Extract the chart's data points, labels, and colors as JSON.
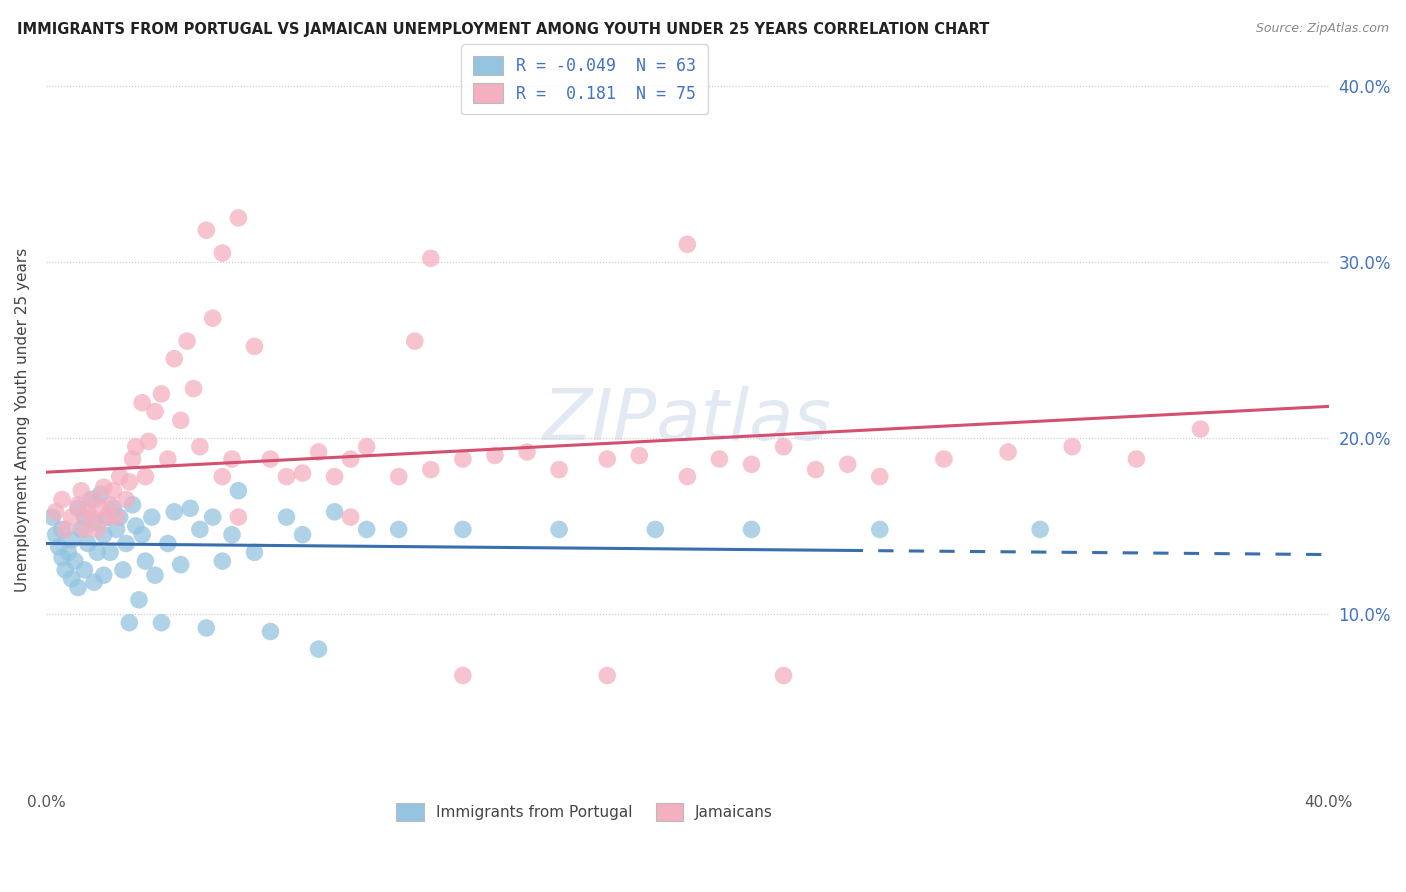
{
  "title": "IMMIGRANTS FROM PORTUGAL VS JAMAICAN UNEMPLOYMENT AMONG YOUTH UNDER 25 YEARS CORRELATION CHART",
  "source": "Source: ZipAtlas.com",
  "ylabel": "Unemployment Among Youth under 25 years",
  "xlim": [
    0.0,
    0.4
  ],
  "ylim": [
    0.0,
    0.42
  ],
  "ytick_labels": [
    "10.0%",
    "20.0%",
    "30.0%",
    "40.0%"
  ],
  "ytick_vals": [
    0.1,
    0.2,
    0.3,
    0.4
  ],
  "legend_labels": [
    "Immigrants from Portugal",
    "Jamaicans"
  ],
  "blue_R": -0.049,
  "blue_N": 63,
  "pink_R": 0.181,
  "pink_N": 75,
  "blue_color": "#94c4e0",
  "pink_color": "#f4afc0",
  "blue_line_color": "#3a6fad",
  "pink_line_color": "#d45070",
  "watermark_text": "ZIPatlas",
  "blue_x": [
    0.002,
    0.003,
    0.004,
    0.005,
    0.005,
    0.006,
    0.007,
    0.008,
    0.008,
    0.009,
    0.01,
    0.01,
    0.011,
    0.012,
    0.012,
    0.013,
    0.014,
    0.015,
    0.015,
    0.016,
    0.017,
    0.018,
    0.018,
    0.019,
    0.02,
    0.021,
    0.022,
    0.023,
    0.024,
    0.025,
    0.026,
    0.027,
    0.028,
    0.029,
    0.03,
    0.031,
    0.033,
    0.034,
    0.036,
    0.038,
    0.04,
    0.042,
    0.045,
    0.048,
    0.05,
    0.052,
    0.055,
    0.058,
    0.06,
    0.065,
    0.07,
    0.075,
    0.08,
    0.085,
    0.09,
    0.1,
    0.11,
    0.13,
    0.16,
    0.19,
    0.22,
    0.26,
    0.31
  ],
  "blue_y": [
    0.155,
    0.145,
    0.138,
    0.132,
    0.148,
    0.125,
    0.135,
    0.12,
    0.142,
    0.13,
    0.16,
    0.115,
    0.148,
    0.125,
    0.155,
    0.14,
    0.165,
    0.118,
    0.152,
    0.135,
    0.168,
    0.145,
    0.122,
    0.155,
    0.135,
    0.16,
    0.148,
    0.155,
    0.125,
    0.14,
    0.095,
    0.162,
    0.15,
    0.108,
    0.145,
    0.13,
    0.155,
    0.122,
    0.095,
    0.14,
    0.158,
    0.128,
    0.16,
    0.148,
    0.092,
    0.155,
    0.13,
    0.145,
    0.17,
    0.135,
    0.09,
    0.155,
    0.145,
    0.08,
    0.158,
    0.148,
    0.148,
    0.148,
    0.148,
    0.148,
    0.148,
    0.148,
    0.148
  ],
  "pink_x": [
    0.003,
    0.005,
    0.006,
    0.008,
    0.01,
    0.011,
    0.012,
    0.013,
    0.014,
    0.015,
    0.016,
    0.017,
    0.018,
    0.019,
    0.02,
    0.021,
    0.022,
    0.023,
    0.025,
    0.026,
    0.027,
    0.028,
    0.03,
    0.031,
    0.032,
    0.034,
    0.036,
    0.038,
    0.04,
    0.042,
    0.044,
    0.046,
    0.048,
    0.05,
    0.052,
    0.055,
    0.058,
    0.06,
    0.065,
    0.07,
    0.075,
    0.08,
    0.085,
    0.09,
    0.095,
    0.1,
    0.11,
    0.115,
    0.12,
    0.13,
    0.14,
    0.15,
    0.16,
    0.175,
    0.185,
    0.2,
    0.21,
    0.22,
    0.23,
    0.24,
    0.25,
    0.26,
    0.28,
    0.3,
    0.32,
    0.34,
    0.36,
    0.055,
    0.12,
    0.2,
    0.13,
    0.175,
    0.23,
    0.06,
    0.095
  ],
  "pink_y": [
    0.158,
    0.165,
    0.148,
    0.155,
    0.162,
    0.17,
    0.148,
    0.158,
    0.155,
    0.165,
    0.148,
    0.16,
    0.172,
    0.155,
    0.162,
    0.17,
    0.155,
    0.178,
    0.165,
    0.175,
    0.188,
    0.195,
    0.22,
    0.178,
    0.198,
    0.215,
    0.225,
    0.188,
    0.245,
    0.21,
    0.255,
    0.228,
    0.195,
    0.318,
    0.268,
    0.178,
    0.188,
    0.325,
    0.252,
    0.188,
    0.178,
    0.18,
    0.192,
    0.178,
    0.188,
    0.195,
    0.178,
    0.255,
    0.182,
    0.188,
    0.19,
    0.192,
    0.182,
    0.188,
    0.19,
    0.178,
    0.188,
    0.185,
    0.195,
    0.182,
    0.185,
    0.178,
    0.188,
    0.192,
    0.195,
    0.188,
    0.205,
    0.305,
    0.302,
    0.31,
    0.065,
    0.065,
    0.065,
    0.155,
    0.155
  ]
}
